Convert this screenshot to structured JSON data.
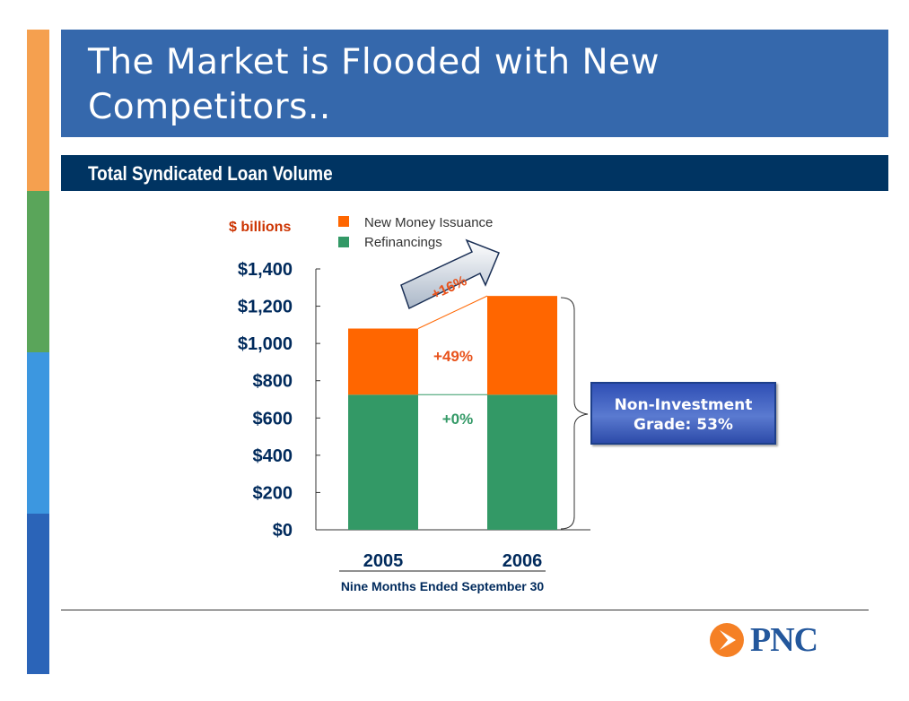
{
  "title": "The Market is Flooded with New Competitors..",
  "title_lines": [
    "The Market is Flooded with New",
    "Competitors.."
  ],
  "subtitle": "Total Syndicated Loan Volume",
  "colors": {
    "side_bar": [
      "#f5a04f",
      "#5aa55a",
      "#3c97e0",
      "#2b64b8"
    ],
    "new_money": "#ff6600",
    "refinancings": "#339966",
    "title_bg": "#3568ac",
    "subtitle_bg": "#003462"
  },
  "callout": {
    "line1": "Non-Investment",
    "line2": "Grade: 53%"
  },
  "logo": {
    "text": "PNC",
    "icon": "pnc-logo-icon"
  },
  "chart_data": {
    "type": "bar",
    "stacked": true,
    "unit_label": "$ billions",
    "categories": [
      "2005",
      "2006"
    ],
    "series": [
      {
        "name": "Refinancings",
        "values": [
          725,
          725
        ]
      },
      {
        "name": "New Money Issuance",
        "values": [
          355,
          530
        ]
      }
    ],
    "ylim": [
      0,
      1400
    ],
    "yticks": [
      "$0",
      "$200",
      "$400",
      "$600",
      "$800",
      "$1,000",
      "$1,200",
      "$1,400"
    ],
    "ytick_values": [
      0,
      200,
      400,
      600,
      800,
      1000,
      1200,
      1400
    ],
    "xlabel": "Nine Months Ended September 30",
    "annotations": {
      "total_growth": "+16%",
      "new_money_growth": "+49%",
      "refinancing_growth": "+0%"
    },
    "legend_placement": "top-center"
  }
}
